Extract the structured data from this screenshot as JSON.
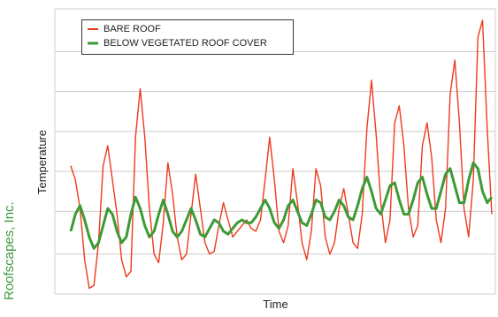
{
  "chart_data": {
    "type": "line",
    "title": "",
    "xlabel": "Time",
    "ylabel": "Temperature",
    "credit": "Roofscapes, Inc.",
    "grid": true,
    "legend": "top-left",
    "series": [
      {
        "name": "BARE ROOF",
        "color": "#ee3a1e",
        "values": [
          0.45,
          0.4,
          0.3,
          0.12,
          0.02,
          0.03,
          0.18,
          0.45,
          0.52,
          0.4,
          0.28,
          0.12,
          0.06,
          0.08,
          0.55,
          0.72,
          0.55,
          0.3,
          0.14,
          0.11,
          0.25,
          0.46,
          0.35,
          0.2,
          0.12,
          0.14,
          0.28,
          0.42,
          0.3,
          0.18,
          0.14,
          0.15,
          0.24,
          0.32,
          0.26,
          0.2,
          0.22,
          0.24,
          0.26,
          0.23,
          0.22,
          0.26,
          0.4,
          0.55,
          0.4,
          0.22,
          0.18,
          0.24,
          0.44,
          0.32,
          0.18,
          0.12,
          0.22,
          0.44,
          0.38,
          0.2,
          0.14,
          0.18,
          0.3,
          0.37,
          0.28,
          0.18,
          0.16,
          0.28,
          0.58,
          0.75,
          0.56,
          0.32,
          0.18,
          0.26,
          0.6,
          0.66,
          0.52,
          0.3,
          0.2,
          0.24,
          0.52,
          0.6,
          0.48,
          0.26,
          0.18,
          0.3,
          0.7,
          0.82,
          0.6,
          0.3,
          0.2,
          0.4,
          0.9,
          0.96,
          0.58,
          0.28
        ]
      },
      {
        "name": "BELOW VEGETATED ROOF COVER",
        "color": "#3d9a35",
        "values": [
          0.22,
          0.28,
          0.31,
          0.26,
          0.2,
          0.16,
          0.18,
          0.24,
          0.3,
          0.28,
          0.22,
          0.18,
          0.2,
          0.28,
          0.34,
          0.3,
          0.24,
          0.2,
          0.22,
          0.28,
          0.33,
          0.28,
          0.22,
          0.2,
          0.22,
          0.26,
          0.3,
          0.26,
          0.21,
          0.2,
          0.23,
          0.26,
          0.25,
          0.22,
          0.21,
          0.23,
          0.25,
          0.26,
          0.25,
          0.25,
          0.27,
          0.3,
          0.33,
          0.3,
          0.25,
          0.23,
          0.26,
          0.31,
          0.33,
          0.29,
          0.25,
          0.24,
          0.28,
          0.33,
          0.32,
          0.27,
          0.26,
          0.29,
          0.33,
          0.31,
          0.27,
          0.26,
          0.31,
          0.37,
          0.41,
          0.36,
          0.3,
          0.28,
          0.33,
          0.38,
          0.39,
          0.33,
          0.28,
          0.28,
          0.33,
          0.39,
          0.41,
          0.35,
          0.3,
          0.3,
          0.36,
          0.42,
          0.44,
          0.38,
          0.32,
          0.32,
          0.4,
          0.46,
          0.44,
          0.36,
          0.32,
          0.34
        ]
      }
    ]
  }
}
